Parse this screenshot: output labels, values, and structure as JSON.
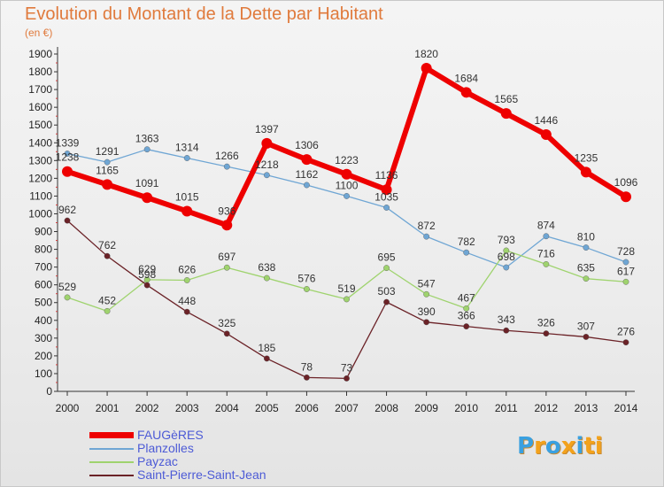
{
  "title": "Evolution du Montant de la Dette par Habitant",
  "subtitle": "(en €)",
  "logo": {
    "text": "Proxiti",
    "letter_colors": [
      "#3aa0e0",
      "#f3a21c",
      "#3aa0e0",
      "#f3a21c",
      "#3aa0e0",
      "#f3a21c",
      "#f3a21c"
    ]
  },
  "chart_data": {
    "type": "line",
    "x": [
      "2000",
      "2001",
      "2002",
      "2003",
      "2004",
      "2005",
      "2006",
      "2007",
      "2008",
      "2009",
      "2010",
      "2011",
      "2012",
      "2013",
      "2014"
    ],
    "ylim": [
      0,
      1900
    ],
    "yticks": [
      0,
      100,
      200,
      300,
      400,
      500,
      600,
      700,
      800,
      900,
      1000,
      1100,
      1200,
      1300,
      1400,
      1500,
      1600,
      1700,
      1800,
      1900
    ],
    "grid": false,
    "legend_placement": "bottom-left",
    "series": [
      {
        "name": "Planzolles",
        "color": "#6fa6d4",
        "values": [
          1339,
          1291,
          1363,
          1314,
          1266,
          1218,
          1162,
          1100,
          1035,
          872,
          782,
          698,
          874,
          810,
          728
        ]
      },
      {
        "name": "Payzac",
        "color": "#9fd36e",
        "values": [
          529,
          452,
          629,
          626,
          697,
          638,
          576,
          519,
          695,
          547,
          467,
          793,
          716,
          635,
          617
        ]
      },
      {
        "name": "Saint-Pierre-Saint-Jean",
        "color": "#6b2227",
        "values": [
          962,
          762,
          598,
          448,
          325,
          185,
          78,
          73,
          503,
          390,
          366,
          343,
          326,
          307,
          276
        ]
      },
      {
        "name": "FAUGèRES",
        "color": "#ee0000",
        "values": [
          1238,
          1165,
          1091,
          1015,
          936,
          1397,
          1306,
          1223,
          1136,
          1820,
          1684,
          1565,
          1446,
          1235,
          1096
        ]
      }
    ],
    "legend_order": [
      "FAUGèRES",
      "Planzolles",
      "Payzac",
      "Saint-Pierre-Saint-Jean"
    ]
  }
}
